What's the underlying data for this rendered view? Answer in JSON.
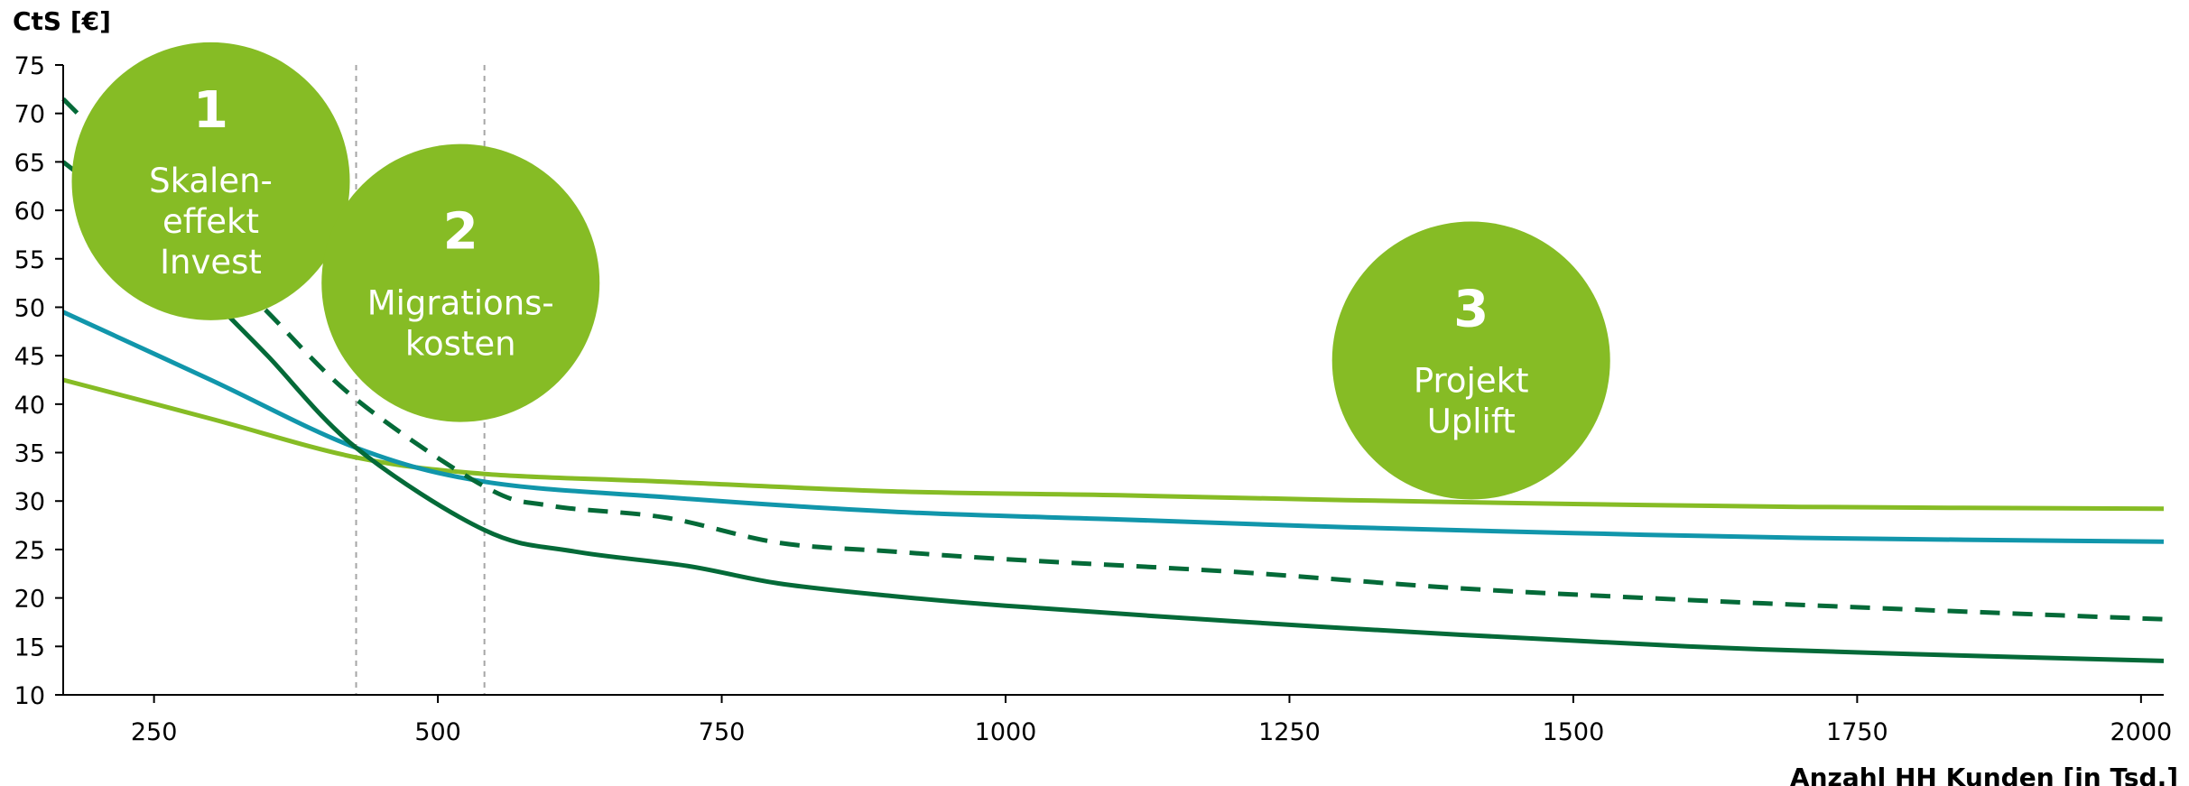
{
  "chart_data": {
    "type": "line",
    "xlabel": "Anzahl HH Kunden [in Tsd.]",
    "ylabel": "CtS [€]",
    "xlim": [
      170,
      2020
    ],
    "ylim": [
      10,
      75
    ],
    "x_ticks": [
      250,
      500,
      750,
      1000,
      1250,
      1500,
      1750,
      2000
    ],
    "y_ticks": [
      10,
      15,
      20,
      25,
      30,
      35,
      40,
      45,
      50,
      55,
      60,
      65,
      70,
      75
    ],
    "grid": false,
    "reference_lines_x": [
      428,
      541
    ],
    "series": [
      {
        "color": "#86bc25",
        "style": "solid",
        "points": [
          [
            170,
            42.5
          ],
          [
            300,
            38.5
          ],
          [
            428,
            34.5
          ],
          [
            541,
            32.8
          ],
          [
            700,
            32.0
          ],
          [
            900,
            31.0
          ],
          [
            1100,
            30.6
          ],
          [
            1300,
            30.1
          ],
          [
            1500,
            29.7
          ],
          [
            1700,
            29.4
          ],
          [
            2020,
            29.2
          ]
        ]
      },
      {
        "color": "#1196ab",
        "style": "solid",
        "points": [
          [
            170,
            49.5
          ],
          [
            300,
            42.5
          ],
          [
            428,
            35.5
          ],
          [
            541,
            32.0
          ],
          [
            700,
            30.4
          ],
          [
            900,
            28.9
          ],
          [
            1100,
            28.1
          ],
          [
            1300,
            27.3
          ],
          [
            1500,
            26.7
          ],
          [
            1700,
            26.2
          ],
          [
            2020,
            25.8
          ]
        ]
      },
      {
        "color": "#046a38",
        "style": "dashed",
        "points": [
          [
            170,
            71.5
          ],
          [
            250,
            62.0
          ],
          [
            300,
            55.5
          ],
          [
            350,
            49.5
          ],
          [
            428,
            40.5
          ],
          [
            541,
            31.5
          ],
          [
            600,
            29.5
          ],
          [
            700,
            28.3
          ],
          [
            800,
            25.7
          ],
          [
            900,
            24.8
          ],
          [
            1000,
            24.0
          ],
          [
            1200,
            22.7
          ],
          [
            1400,
            21.0
          ],
          [
            1600,
            19.8
          ],
          [
            1800,
            18.8
          ],
          [
            2020,
            17.8
          ]
        ]
      },
      {
        "color": "#046a38",
        "style": "solid",
        "points": [
          [
            170,
            65.0
          ],
          [
            250,
            57.5
          ],
          [
            300,
            51.0
          ],
          [
            350,
            45.0
          ],
          [
            428,
            35.5
          ],
          [
            541,
            27.0
          ],
          [
            620,
            24.8
          ],
          [
            720,
            23.3
          ],
          [
            800,
            21.5
          ],
          [
            900,
            20.2
          ],
          [
            1000,
            19.2
          ],
          [
            1200,
            17.6
          ],
          [
            1400,
            16.2
          ],
          [
            1600,
            15.0
          ],
          [
            1800,
            14.2
          ],
          [
            2020,
            13.5
          ]
        ]
      }
    ],
    "annotations": [
      {
        "number": "1",
        "lines": [
          "Skalen-",
          "effekt",
          "Invest"
        ],
        "center": [
          300,
          63.0
        ],
        "color": "#86bc25"
      },
      {
        "number": "2",
        "lines": [
          "Migrations-",
          "kosten"
        ],
        "center": [
          520,
          52.5
        ],
        "color": "#86bc25"
      },
      {
        "number": "3",
        "lines": [
          "Projekt",
          "Uplift"
        ],
        "center": [
          1410,
          44.5
        ],
        "color": "#86bc25"
      }
    ]
  }
}
